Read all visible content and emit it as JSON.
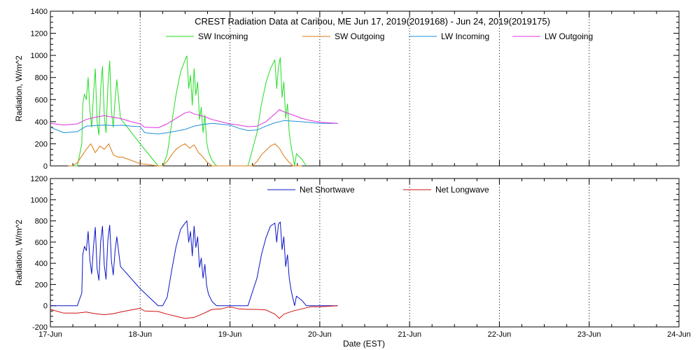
{
  "chart_data": [
    {
      "type": "line",
      "title": "CREST Radiation Data at Caribou, ME   Jun 17, 2019(2019168) - Jun 24, 2019(2019175)",
      "ylabel": "Radiation, W/m^2",
      "xlabel": "",
      "xlim": [
        0,
        7
      ],
      "ylim": [
        0,
        1400
      ],
      "yticks": [
        "0",
        "200",
        "400",
        "600",
        "800",
        "1000",
        "1200",
        "1400"
      ],
      "grid": true,
      "legend_position": "top-center",
      "series": [
        {
          "name": "SW Incoming",
          "color": "#22dd22",
          "x": [
            0.2,
            0.25,
            0.3,
            0.35,
            0.36,
            0.38,
            0.4,
            0.42,
            0.44,
            0.46,
            0.48,
            0.5,
            0.52,
            0.54,
            0.56,
            0.58,
            0.6,
            0.62,
            0.64,
            0.66,
            0.68,
            0.7,
            0.72,
            0.74,
            0.78,
            1.0,
            1.2,
            1.25,
            1.3,
            1.35,
            1.4,
            1.45,
            1.5,
            1.52,
            1.54,
            1.56,
            1.58,
            1.6,
            1.62,
            1.64,
            1.66,
            1.68,
            1.7,
            1.72,
            1.74,
            1.76,
            1.8,
            1.85,
            1.9,
            2.2,
            2.3,
            2.35,
            2.4,
            2.45,
            2.5,
            2.52,
            2.54,
            2.56,
            2.58,
            2.6,
            2.62,
            2.64,
            2.66,
            2.68,
            2.7,
            2.72,
            2.74,
            2.8,
            2.85
          ],
          "y": [
            0,
            0,
            0,
            200,
            560,
            650,
            600,
            800,
            500,
            350,
            650,
            880,
            400,
            280,
            700,
            900,
            450,
            300,
            720,
            950,
            500,
            350,
            600,
            780,
            430,
            200,
            0,
            0,
            100,
            380,
            650,
            850,
            960,
            995,
            700,
            820,
            550,
            880,
            640,
            760,
            420,
            530,
            300,
            460,
            220,
            130,
            50,
            0,
            0,
            0,
            300,
            560,
            750,
            880,
            960,
            700,
            900,
            980,
            620,
            760,
            430,
            560,
            300,
            180,
            90,
            0,
            110,
            60,
            0
          ]
        },
        {
          "name": "SW Outgoing",
          "color": "#d87a10",
          "x": [
            0.2,
            0.25,
            0.3,
            0.35,
            0.4,
            0.45,
            0.5,
            0.55,
            0.6,
            0.65,
            0.7,
            0.75,
            0.8,
            1.0,
            1.2,
            1.25,
            1.3,
            1.35,
            1.4,
            1.45,
            1.5,
            1.55,
            1.6,
            1.65,
            1.7,
            1.75,
            1.8,
            1.85,
            2.2,
            2.25,
            2.3,
            2.35,
            2.4,
            2.45,
            2.5,
            2.55,
            2.6,
            2.65,
            2.7,
            2.75,
            2.8
          ],
          "y": [
            0,
            0,
            30,
            90,
            150,
            200,
            120,
            180,
            150,
            200,
            100,
            80,
            80,
            20,
            0,
            0,
            40,
            100,
            150,
            180,
            200,
            160,
            190,
            120,
            80,
            30,
            0,
            0,
            0,
            0,
            40,
            100,
            140,
            180,
            200,
            160,
            90,
            40,
            0,
            0,
            0
          ]
        },
        {
          "name": "LW Incoming",
          "color": "#1f8fd8",
          "x": [
            0,
            0.15,
            0.3,
            0.4,
            0.5,
            0.6,
            0.7,
            0.8,
            0.9,
            1.0,
            1.05,
            1.2,
            1.3,
            1.5,
            1.6,
            1.7,
            1.8,
            2.0,
            2.1,
            2.2,
            2.3,
            2.4,
            2.5,
            2.6,
            2.8,
            3.0,
            3.2
          ],
          "y": [
            350,
            300,
            310,
            360,
            365,
            370,
            365,
            368,
            360,
            355,
            300,
            290,
            300,
            330,
            360,
            375,
            385,
            370,
            340,
            320,
            325,
            360,
            390,
            410,
            400,
            385,
            385
          ]
        },
        {
          "name": "LW Outgoing",
          "color": "#e030e0",
          "x": [
            0,
            0.15,
            0.3,
            0.4,
            0.5,
            0.6,
            0.7,
            0.8,
            0.9,
            1.0,
            1.05,
            1.2,
            1.3,
            1.4,
            1.5,
            1.55,
            1.6,
            1.7,
            1.8,
            1.9,
            2.0,
            2.1,
            2.2,
            2.3,
            2.4,
            2.5,
            2.55,
            2.6,
            2.7,
            2.8,
            2.9,
            3.0,
            3.2
          ],
          "y": [
            385,
            370,
            380,
            420,
            440,
            455,
            440,
            425,
            400,
            380,
            350,
            345,
            380,
            430,
            480,
            490,
            470,
            450,
            420,
            400,
            380,
            370,
            355,
            360,
            400,
            470,
            510,
            490,
            460,
            430,
            410,
            395,
            385
          ]
        }
      ]
    },
    {
      "type": "line",
      "title": "",
      "ylabel": "Radiation, W/m^2",
      "xlabel": "Date (EST)",
      "xlim": [
        0,
        7
      ],
      "ylim": [
        -200,
        1200
      ],
      "yticks": [
        "-200",
        "0",
        "200",
        "400",
        "600",
        "800",
        "1000",
        "1200"
      ],
      "categories": [
        "17-Jun",
        "18-Jun",
        "19-Jun",
        "20-Jun",
        "21-Jun",
        "22-Jun",
        "23-Jun",
        "24-Jun"
      ],
      "grid": true,
      "legend_position": "top-center",
      "series": [
        {
          "name": "Net Shortwave",
          "color": "#0a14c8",
          "x": [
            0.0,
            0.2,
            0.25,
            0.3,
            0.35,
            0.36,
            0.38,
            0.4,
            0.42,
            0.44,
            0.46,
            0.48,
            0.5,
            0.52,
            0.54,
            0.56,
            0.58,
            0.6,
            0.62,
            0.64,
            0.66,
            0.68,
            0.7,
            0.72,
            0.74,
            0.78,
            1.0,
            1.2,
            1.25,
            1.3,
            1.35,
            1.4,
            1.45,
            1.5,
            1.52,
            1.54,
            1.56,
            1.58,
            1.6,
            1.62,
            1.64,
            1.66,
            1.68,
            1.7,
            1.72,
            1.74,
            1.76,
            1.8,
            1.85,
            1.9,
            2.2,
            2.3,
            2.35,
            2.4,
            2.45,
            2.5,
            2.52,
            2.54,
            2.56,
            2.58,
            2.6,
            2.62,
            2.64,
            2.66,
            2.68,
            2.7,
            2.72,
            2.74,
            2.8,
            2.85,
            3.0,
            3.2
          ],
          "y": [
            0,
            0,
            0,
            0,
            120,
            480,
            560,
            520,
            700,
            430,
            300,
            560,
            740,
            350,
            240,
            600,
            750,
            380,
            250,
            620,
            760,
            420,
            290,
            520,
            650,
            370,
            160,
            0,
            0,
            80,
            330,
            560,
            720,
            780,
            800,
            600,
            700,
            470,
            750,
            550,
            650,
            360,
            450,
            260,
            390,
            190,
            110,
            40,
            0,
            0,
            0,
            260,
            480,
            640,
            750,
            780,
            600,
            770,
            790,
            530,
            650,
            370,
            480,
            260,
            150,
            70,
            0,
            90,
            50,
            0,
            0,
            0
          ]
        },
        {
          "name": "Net Longwave",
          "color": "#d01010",
          "x": [
            0,
            0.15,
            0.3,
            0.4,
            0.5,
            0.6,
            0.7,
            0.8,
            0.9,
            1.0,
            1.05,
            1.2,
            1.3,
            1.4,
            1.5,
            1.55,
            1.6,
            1.7,
            1.8,
            1.9,
            2.0,
            2.1,
            2.2,
            2.3,
            2.4,
            2.5,
            2.55,
            2.6,
            2.7,
            2.8,
            2.9,
            3.0,
            3.2
          ],
          "y": [
            -35,
            -70,
            -70,
            -60,
            -75,
            -85,
            -75,
            -57,
            -40,
            -25,
            -50,
            -55,
            -80,
            -100,
            -120,
            -115,
            -110,
            -75,
            -35,
            -30,
            -10,
            -30,
            -35,
            -35,
            -40,
            -80,
            -120,
            -80,
            -50,
            -30,
            -10,
            -10,
            0
          ]
        }
      ]
    }
  ]
}
